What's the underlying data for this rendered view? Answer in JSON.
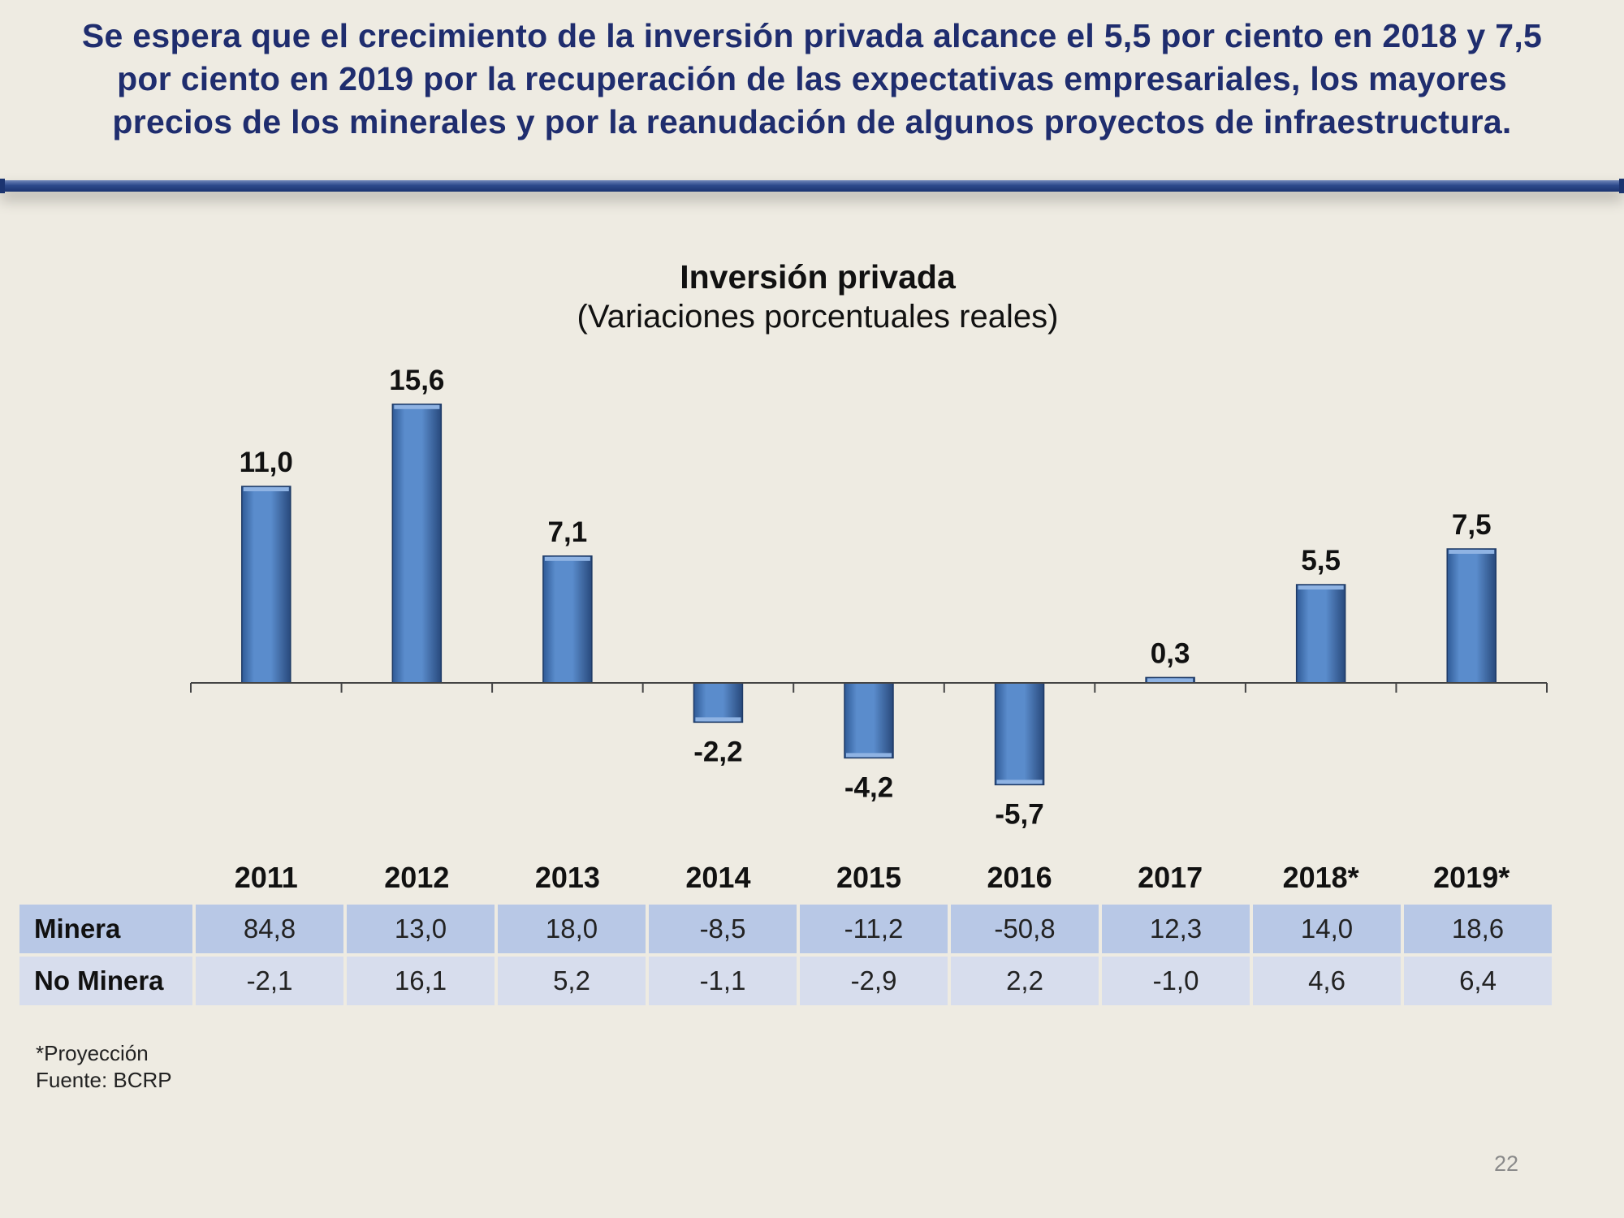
{
  "headline": {
    "line1": "Se espera que el crecimiento de la inversión privada alcance el 5,5 por ciento en 2018 y 7,5",
    "line2": "por ciento en 2019  por la recuperación de las expectativas empresariales, los mayores",
    "line3": "precios de los minerales y por la reanudación de algunos proyectos de infraestructura."
  },
  "chart_data": {
    "type": "bar",
    "title": "Inversión privada",
    "subtitle": "(Variaciones porcentuales reales)",
    "categories": [
      "2011",
      "2012",
      "2013",
      "2014",
      "2015",
      "2016",
      "2017",
      "2018*",
      "2019*"
    ],
    "values": [
      11.0,
      15.6,
      7.1,
      -2.2,
      -4.2,
      -5.7,
      0.3,
      5.5,
      7.5
    ],
    "value_labels": [
      "11,0",
      "15,6",
      "7,1",
      "-2,2",
      "-4,2",
      "-5,7",
      "0,3",
      "5,5",
      "7,5"
    ],
    "ylim": [
      -7,
      18
    ],
    "grid": false,
    "legend": "none",
    "bar_color": "#4f81c4",
    "table": {
      "rows": [
        {
          "name": "Minera",
          "values": [
            "84,8",
            "13,0",
            "18,0",
            "-8,5",
            "-11,2",
            "-50,8",
            "12,3",
            "14,0",
            "18,6"
          ]
        },
        {
          "name": "No Minera",
          "values": [
            "-2,1",
            "16,1",
            "5,2",
            "-1,1",
            "-2,9",
            "2,2",
            "-1,0",
            "4,6",
            "6,4"
          ]
        }
      ]
    }
  },
  "footnote": {
    "projection": "*Proyección",
    "source": "Fuente: BCRP"
  },
  "page_number": "22",
  "colors": {
    "headline": "#1f2d6e",
    "background": "#eeebe2",
    "rule": "#2d4a8c",
    "minera_row": "#b8c8e6",
    "no_minera_row": "#d7dded"
  }
}
